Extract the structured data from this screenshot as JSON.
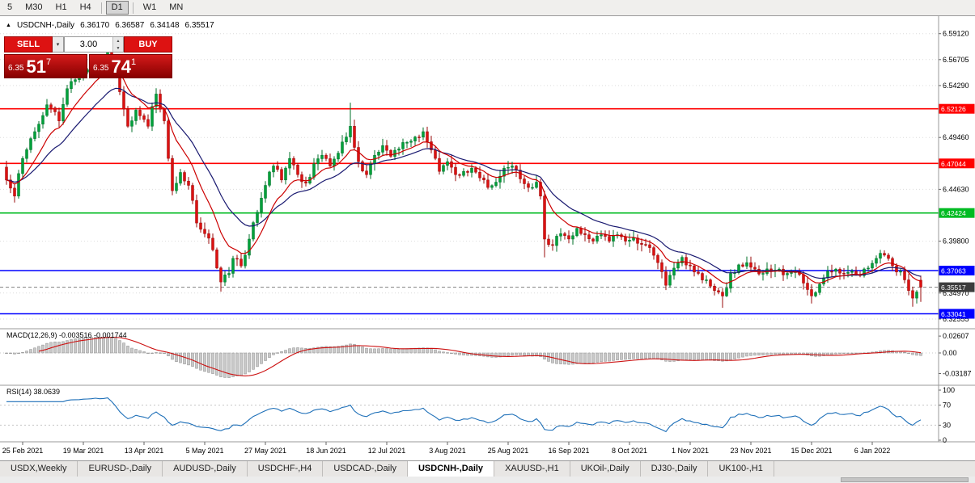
{
  "toolbar": {
    "timeframes": [
      {
        "label": "5",
        "active": false
      },
      {
        "label": "M30",
        "active": false
      },
      {
        "label": "H1",
        "active": false
      },
      {
        "label": "H4",
        "active": false
      },
      {
        "label": "D1",
        "active": true
      },
      {
        "label": "W1",
        "active": false
      },
      {
        "label": "MN",
        "active": false
      }
    ]
  },
  "title": {
    "marker": "▲",
    "symbol": "USDCNH-,Daily",
    "open": "6.36170",
    "high": "6.36587",
    "low": "6.34148",
    "close": "6.35517"
  },
  "trade": {
    "sell": "SELL",
    "buy": "BUY",
    "volume": "3.00",
    "bid": {
      "base": "6.35",
      "big": "51",
      "sup": "7"
    },
    "ask": {
      "base": "6.35",
      "big": "74",
      "sup": "1"
    },
    "dropdown_icon": "▾",
    "spin_up_icon": "▲",
    "spin_down_icon": "▼"
  },
  "price_axis": {
    "labels": [
      6.5912,
      6.56705,
      6.5429,
      6.4946,
      6.4463,
      6.398,
      6.3497,
      6.32555
    ]
  },
  "hlines": [
    {
      "price": 6.52126,
      "color": "#ff0000",
      "kind": "resistance"
    },
    {
      "price": 6.47044,
      "color": "#ff0000",
      "kind": "resistance"
    },
    {
      "price": 6.42424,
      "color": "#00bb22",
      "kind": "level"
    },
    {
      "price": 6.37063,
      "color": "#0000ff",
      "kind": "support"
    },
    {
      "price": 6.33041,
      "color": "#0000ff",
      "kind": "support"
    }
  ],
  "current_price": {
    "value": 6.35517,
    "tag_color": "#3d3d3d"
  },
  "indicators": {
    "macd": {
      "label": "MACD(12,26,9) -0.003516 -0.001744",
      "values": {
        "macd": -0.003516,
        "signal": -0.001744
      },
      "axis": [
        {
          "v": 0.02607,
          "t": "0.02607"
        },
        {
          "v": 0,
          "t": "0.00"
        },
        {
          "v": -0.03187,
          "t": "-0.03187"
        }
      ]
    },
    "rsi": {
      "label": "RSI(14) 38.0639",
      "value": 38.0639,
      "axis": [
        {
          "v": 100,
          "t": "100"
        },
        {
          "v": 70,
          "t": "70"
        },
        {
          "v": 30,
          "t": "30"
        },
        {
          "v": 0,
          "t": "0"
        }
      ],
      "levels": [
        70,
        30
      ]
    }
  },
  "dates": [
    "25 Feb 2021",
    "19 Mar 2021",
    "13 Apr 2021",
    "5 May 2021",
    "27 May 2021",
    "18 Jun 2021",
    "12 Jul 2021",
    "3 Aug 2021",
    "25 Aug 2021",
    "16 Sep 2021",
    "8 Oct 2021",
    "1 Nov 2021",
    "23 Nov 2021",
    "15 Dec 2021",
    "6 Jan 2022"
  ],
  "tabs": [
    {
      "label": "USDX,Weekly",
      "active": false
    },
    {
      "label": "EURUSD-,Daily",
      "active": false
    },
    {
      "label": "AUDUSD-,Daily",
      "active": false
    },
    {
      "label": "USDCHF-,H4",
      "active": false
    },
    {
      "label": "USDCAD-,Daily",
      "active": false
    },
    {
      "label": "USDCNH-,Daily",
      "active": true
    },
    {
      "label": "XAUUSD-,H1",
      "active": false
    },
    {
      "label": "UKOil-,Daily",
      "active": false
    },
    {
      "label": "DJ30-,Daily",
      "active": false
    },
    {
      "label": "UK100-,H1",
      "active": false
    }
  ],
  "chart_data": {
    "type": "candlestick",
    "symbol": "USDCNH-",
    "timeframe": "Daily",
    "last_ohlc": [
      6.3617,
      6.36587,
      6.34148,
      6.35517
    ],
    "ylim": [
      6.318,
      6.6
    ],
    "candle_count": 227,
    "close_keypoints": [
      [
        0,
        6.455
      ],
      [
        2,
        6.44
      ],
      [
        4,
        6.475
      ],
      [
        7,
        6.5
      ],
      [
        10,
        6.525
      ],
      [
        13,
        6.51
      ],
      [
        15,
        6.54
      ],
      [
        18,
        6.55
      ],
      [
        21,
        6.56
      ],
      [
        25,
        6.575
      ],
      [
        27,
        6.555
      ],
      [
        30,
        6.505
      ],
      [
        32,
        6.52
      ],
      [
        35,
        6.505
      ],
      [
        37,
        6.535
      ],
      [
        39,
        6.51
      ],
      [
        41,
        6.445
      ],
      [
        43,
        6.462
      ],
      [
        45,
        6.45
      ],
      [
        47,
        6.415
      ],
      [
        49,
        6.405
      ],
      [
        51,
        6.39
      ],
      [
        53,
        6.36
      ],
      [
        55,
        6.368
      ],
      [
        56,
        6.382
      ],
      [
        58,
        6.375
      ],
      [
        60,
        6.4
      ],
      [
        62,
        6.425
      ],
      [
        64,
        6.45
      ],
      [
        66,
        6.468
      ],
      [
        68,
        6.455
      ],
      [
        70,
        6.475
      ],
      [
        72,
        6.46
      ],
      [
        74,
        6.452
      ],
      [
        76,
        6.47
      ],
      [
        78,
        6.478
      ],
      [
        80,
        6.468
      ],
      [
        82,
        6.48
      ],
      [
        84,
        6.495
      ],
      [
        85,
        6.505
      ],
      [
        87,
        6.472
      ],
      [
        89,
        6.46
      ],
      [
        91,
        6.478
      ],
      [
        93,
        6.487
      ],
      [
        95,
        6.477
      ],
      [
        97,
        6.484
      ],
      [
        99,
        6.49
      ],
      [
        101,
        6.495
      ],
      [
        103,
        6.5
      ],
      [
        105,
        6.483
      ],
      [
        107,
        6.463
      ],
      [
        109,
        6.472
      ],
      [
        111,
        6.46
      ],
      [
        113,
        6.463
      ],
      [
        115,
        6.466
      ],
      [
        117,
        6.457
      ],
      [
        119,
        6.448
      ],
      [
        121,
        6.453
      ],
      [
        123,
        6.466
      ],
      [
        125,
        6.468
      ],
      [
        127,
        6.456
      ],
      [
        129,
        6.448
      ],
      [
        131,
        6.453
      ],
      [
        132,
        6.44
      ],
      [
        133,
        6.4
      ],
      [
        135,
        6.394
      ],
      [
        137,
        6.405
      ],
      [
        139,
        6.4
      ],
      [
        141,
        6.41
      ],
      [
        143,
        6.404
      ],
      [
        145,
        6.398
      ],
      [
        147,
        6.404
      ],
      [
        149,
        6.398
      ],
      [
        151,
        6.404
      ],
      [
        153,
        6.398
      ],
      [
        155,
        6.401
      ],
      [
        157,
        6.395
      ],
      [
        159,
        6.392
      ],
      [
        161,
        6.378
      ],
      [
        163,
        6.357
      ],
      [
        165,
        6.373
      ],
      [
        167,
        6.383
      ],
      [
        169,
        6.375
      ],
      [
        171,
        6.368
      ],
      [
        173,
        6.362
      ],
      [
        175,
        6.352
      ],
      [
        177,
        6.347
      ],
      [
        179,
        6.368
      ],
      [
        181,
        6.376
      ],
      [
        183,
        6.378
      ],
      [
        185,
        6.372
      ],
      [
        187,
        6.368
      ],
      [
        189,
        6.37
      ],
      [
        191,
        6.372
      ],
      [
        193,
        6.368
      ],
      [
        195,
        6.37
      ],
      [
        197,
        6.359
      ],
      [
        199,
        6.347
      ],
      [
        201,
        6.358
      ],
      [
        203,
        6.37
      ],
      [
        205,
        6.372
      ],
      [
        207,
        6.368
      ],
      [
        209,
        6.37
      ],
      [
        211,
        6.366
      ],
      [
        213,
        6.373
      ],
      [
        215,
        6.382
      ],
      [
        217,
        6.385
      ],
      [
        219,
        6.375
      ],
      [
        221,
        6.37
      ],
      [
        222,
        6.362
      ],
      [
        223,
        6.352
      ],
      [
        224,
        6.345
      ],
      [
        226,
        6.35517
      ]
    ],
    "wick_overrides": {
      "25": {
        "h": 6.586
      },
      "53": {
        "l": 6.351
      },
      "85": {
        "h": 6.527
      },
      "133": {
        "l": 6.383
      },
      "177": {
        "l": 6.336
      },
      "199": {
        "l": 6.34
      },
      "224": {
        "l": 6.337
      }
    },
    "ma_fast": {
      "period": 10,
      "color": "#cc0000"
    },
    "ma_slow": {
      "period": 21,
      "color": "#191970"
    },
    "macd_params": [
      12,
      26,
      9
    ],
    "rsi_period": 14,
    "bull_color": "#00a13a",
    "bear_color": "#dc1111",
    "bull_border": "#00702a",
    "bear_border": "#990b0b",
    "macd_histogram_color": "#c9c9c9",
    "macd_histogram_border": "#8a8a8a",
    "macd_signal_color": "#cc1111",
    "rsi_color": "#1d6fb8"
  }
}
